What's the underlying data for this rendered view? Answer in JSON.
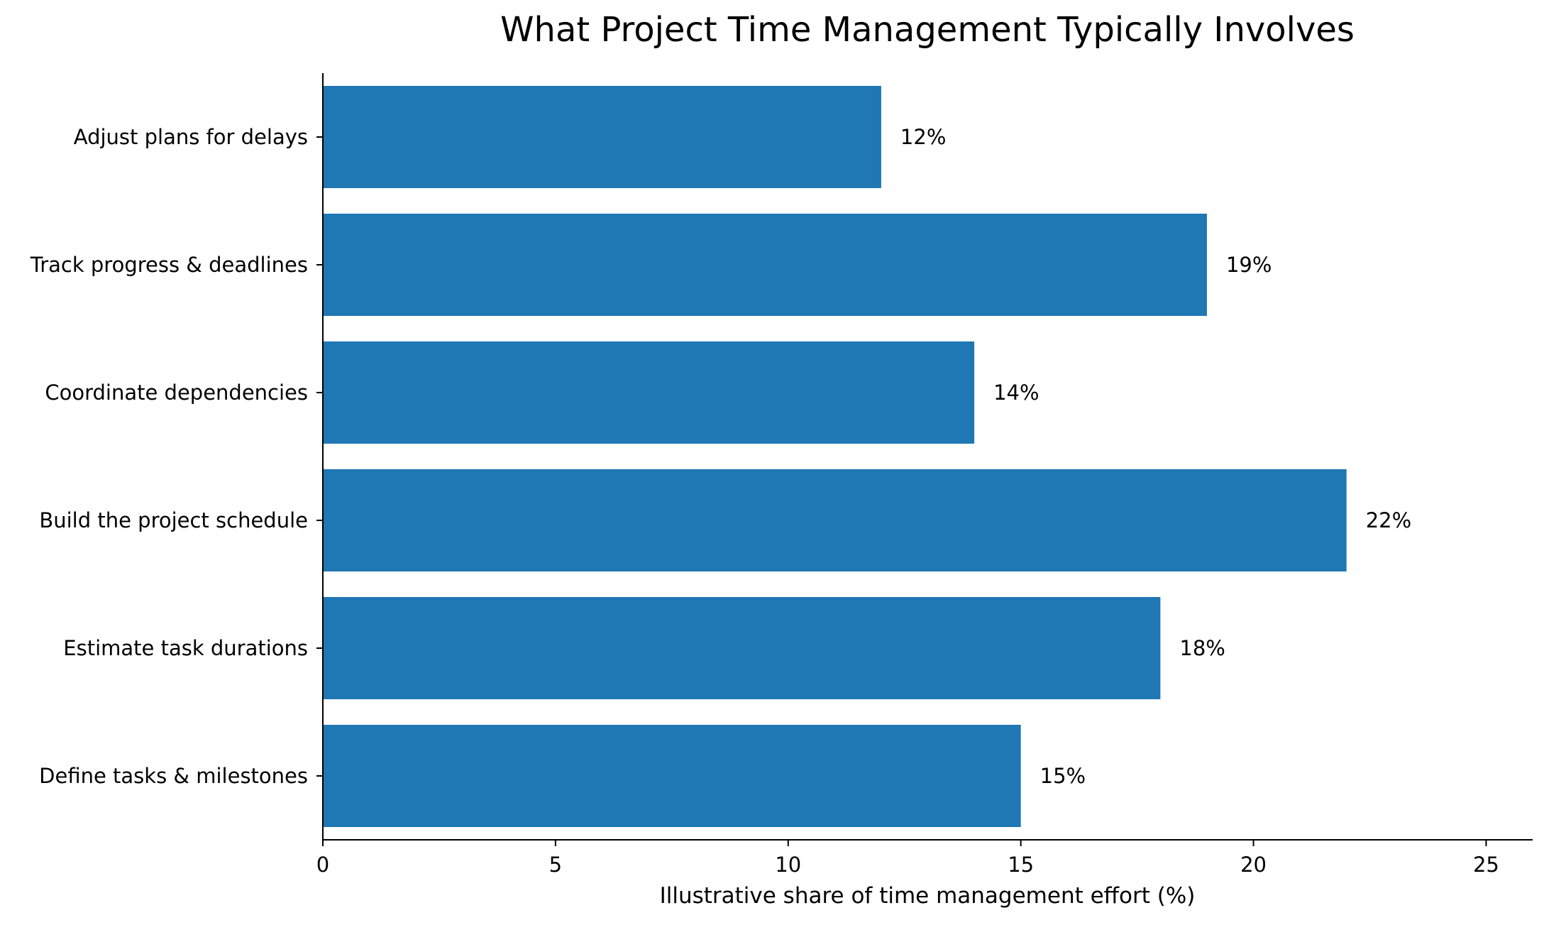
{
  "chart_data": {
    "type": "bar",
    "orientation": "horizontal",
    "title": "What Project Time Management Typically Involves",
    "xlabel": "Illustrative share of time management effort (%)",
    "ylabel": "",
    "categories": [
      "Define tasks & milestones",
      "Estimate task durations",
      "Build the project schedule",
      "Coordinate dependencies",
      "Track progress & deadlines",
      "Adjust plans for delays"
    ],
    "values": [
      15,
      18,
      22,
      14,
      19,
      12
    ],
    "value_labels": [
      "15%",
      "18%",
      "22%",
      "14%",
      "19%",
      "12%"
    ],
    "xlim": [
      0,
      26
    ],
    "xticks": [
      0,
      5,
      10,
      15,
      20,
      25
    ],
    "xtick_labels": [
      "0",
      "5",
      "10",
      "15",
      "20",
      "25"
    ],
    "bar_color": "#1f77b4",
    "grid": false,
    "legend": "none"
  }
}
